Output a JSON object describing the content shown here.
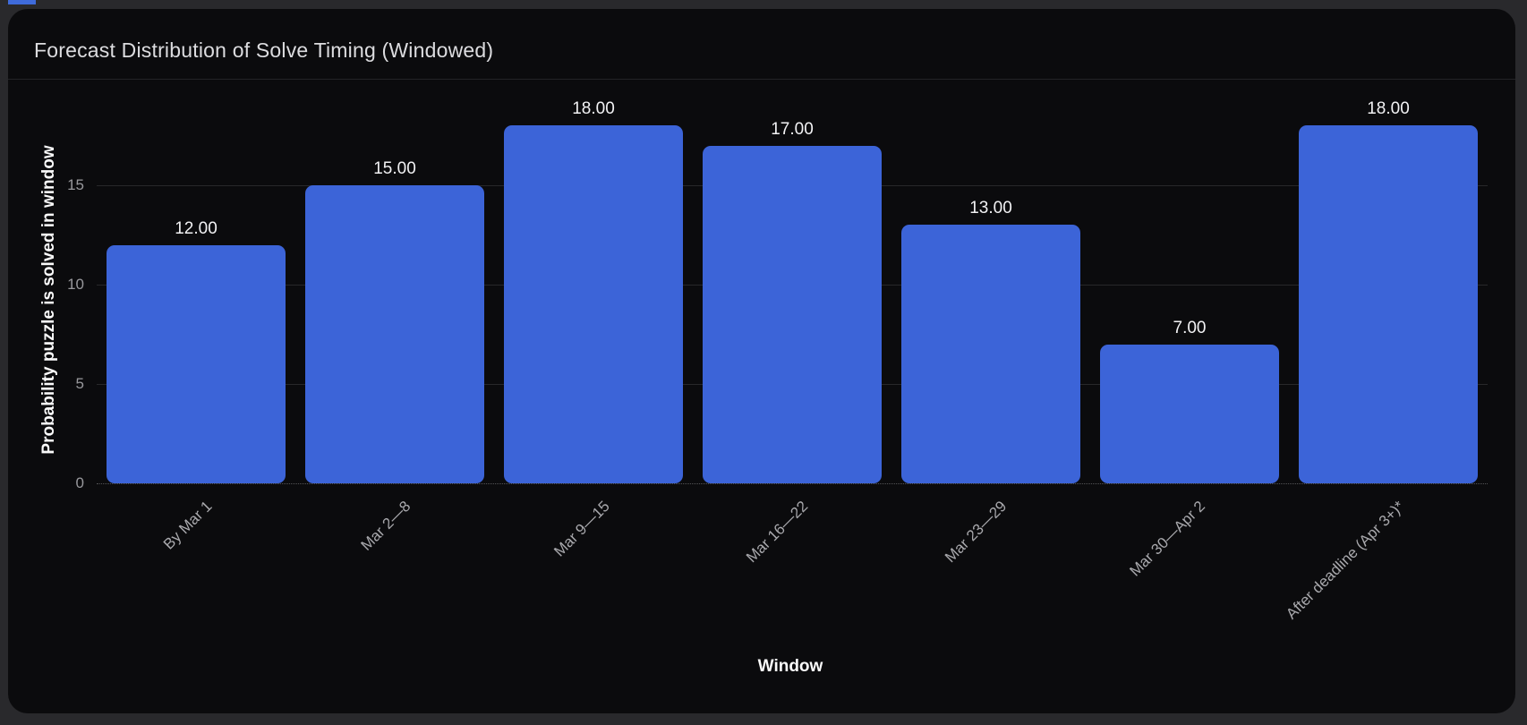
{
  "card": {
    "title": "Forecast Distribution of Solve Timing (Windowed)"
  },
  "colors": {
    "bar": "#3c64d8",
    "card_background": "#0b0b0d",
    "page_background": "#29292c",
    "tab_fragment": "#3f6bdb"
  },
  "chart_data": {
    "type": "bar",
    "title": "Forecast Distribution of Solve Timing (Windowed)",
    "categories": [
      "By Mar 1",
      "Mar 2—8",
      "Mar 9—15",
      "Mar 16—22",
      "Mar 23—29",
      "Mar 30—Apr 2",
      "After deadline (Apr 3+)*"
    ],
    "values": [
      12,
      15,
      18,
      17,
      13,
      7,
      18
    ],
    "value_labels": [
      "12.00",
      "15.00",
      "18.00",
      "17.00",
      "13.00",
      "7.00",
      "18.00"
    ],
    "xlabel": "Window",
    "ylabel": "Probability puzzle is solved in window",
    "yticks": [
      0,
      5,
      10,
      15
    ],
    "ylim": [
      0,
      18.9
    ],
    "grid": true,
    "legend_position": "none",
    "bar_color": "#3c64d8"
  }
}
